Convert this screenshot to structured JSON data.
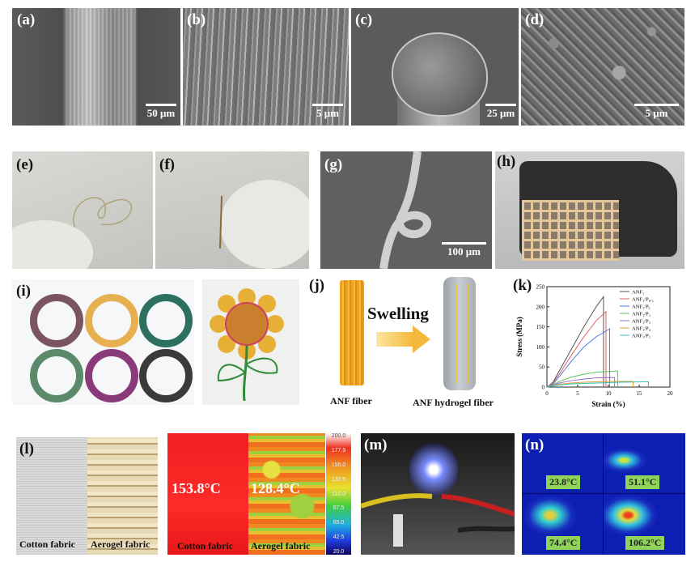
{
  "panels": {
    "a": {
      "label": "(a)",
      "scale": "50 μm"
    },
    "b": {
      "label": "(b)",
      "scale": "5 μm"
    },
    "c": {
      "label": "(c)",
      "scale": "25 μm"
    },
    "d": {
      "label": "(d)",
      "scale": "5 μm"
    },
    "e": {
      "label": "(e)"
    },
    "f": {
      "label": "(f)"
    },
    "g": {
      "label": "(g)",
      "scale": "100 μm"
    },
    "h": {
      "label": "(h)"
    },
    "i": {
      "label": "(i)"
    },
    "j": {
      "label": "(j)",
      "arrow_text": "Swelling",
      "left_caption": "ANF  fiber",
      "right_caption": "ANF hydrogel fiber"
    },
    "k": {
      "label": "(k)"
    },
    "l": {
      "label": "(l)",
      "left_caption": "Cotton fabric",
      "right_caption": "Aerogel fabric",
      "ir_left_caption": "Cotton fabric",
      "ir_right_caption": "Aerogel fabric",
      "temp_left": "153.8°C",
      "temp_right": "128.4°C",
      "colorbar_ticks": [
        "200.0",
        "177.5",
        "155.0",
        "132.5",
        "110.0",
        "87.5",
        "65.0",
        "42.5",
        "20.0"
      ]
    },
    "m": {
      "label": "(m)"
    },
    "n": {
      "label": "(n)",
      "temps": [
        "23.8°C",
        "51.1°C",
        "74.4°C",
        "106.2°C"
      ]
    }
  },
  "chart_data": {
    "type": "line",
    "xlabel": "Strain (%)",
    "ylabel": "Stress (MPa)",
    "xlim": [
      0,
      20
    ],
    "ylim": [
      0,
      250
    ],
    "xticks": [
      0,
      5,
      10,
      15,
      20
    ],
    "yticks": [
      0,
      50,
      100,
      150,
      200,
      250
    ],
    "legend": "top-right",
    "series": [
      {
        "name": "ANF₁",
        "color": "#555555",
        "x": [
          0,
          1,
          2,
          4,
          6,
          8,
          9.2,
          9.2
        ],
        "y": [
          0,
          12,
          40,
          95,
          150,
          200,
          225,
          0
        ]
      },
      {
        "name": "ANF₁/P₀.₅",
        "color": "#e06060",
        "x": [
          0,
          1,
          2,
          4,
          6,
          8,
          9.6,
          9.6
        ],
        "y": [
          0,
          10,
          32,
          80,
          125,
          165,
          188,
          0
        ]
      },
      {
        "name": "ANF₁/P₁",
        "color": "#4a7fe0",
        "x": [
          0,
          1,
          2,
          4,
          6,
          8,
          10.2,
          10.2
        ],
        "y": [
          0,
          8,
          26,
          65,
          100,
          125,
          145,
          0
        ]
      },
      {
        "name": "ANF₁/P₂",
        "color": "#5fbf5f",
        "x": [
          0,
          1,
          2,
          4,
          6,
          8,
          11.5,
          11.5
        ],
        "y": [
          0,
          6,
          14,
          25,
          32,
          37,
          40,
          0
        ]
      },
      {
        "name": "ANF₁/P₃",
        "color": "#9a6fd0",
        "x": [
          0,
          1,
          2,
          4,
          6,
          8,
          11,
          11
        ],
        "y": [
          0,
          5,
          10,
          16,
          20,
          23,
          24,
          0
        ]
      },
      {
        "name": "ANF₁/P₄",
        "color": "#e0a030",
        "x": [
          0,
          1,
          2,
          4,
          6,
          8,
          10,
          14,
          14
        ],
        "y": [
          0,
          4,
          7,
          10,
          12,
          13,
          14,
          14,
          0
        ]
      },
      {
        "name": "ANF₁/P₅",
        "color": "#30c0c0",
        "x": [
          0,
          1,
          2,
          4,
          8,
          12,
          16,
          16.5,
          16.5
        ],
        "y": [
          0,
          3,
          5,
          8,
          10,
          12,
          13,
          13,
          0
        ]
      }
    ]
  }
}
